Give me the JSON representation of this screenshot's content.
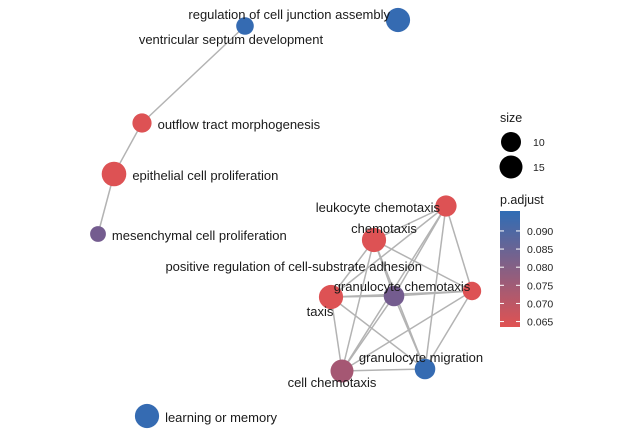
{
  "chart_data": {
    "type": "network",
    "nodes": [
      {
        "id": "regulation_of_cell_junction_assembly",
        "label": "regulation of cell junction assembly",
        "size": 17,
        "p_adjust": 0.094
      },
      {
        "id": "ventricular_septum_development",
        "label": "ventricular septum development",
        "size": 7,
        "p_adjust": 0.094
      },
      {
        "id": "outflow_tract_morphogenesis",
        "label": "outflow tract morphogenesis",
        "size": 9,
        "p_adjust": 0.064
      },
      {
        "id": "epithelial_cell_proliferation",
        "label": "epithelial cell proliferation",
        "size": 18,
        "p_adjust": 0.064
      },
      {
        "id": "mesenchymal_cell_proliferation",
        "label": "mesenchymal cell proliferation",
        "size": 5,
        "p_adjust": 0.079
      },
      {
        "id": "leukocyte_chemotaxis",
        "label": "leukocyte chemotaxis",
        "size": 12,
        "p_adjust": 0.064
      },
      {
        "id": "chemotaxis",
        "label": "chemotaxis",
        "size": 17,
        "p_adjust": 0.064
      },
      {
        "id": "positive_regulation_of_cell_substrate_adhesion",
        "label": "positive regulation of cell-substrate adhesion",
        "size": 8,
        "p_adjust": 0.064
      },
      {
        "id": "granulocyte_chemotaxis",
        "label": "granulocyte chemotaxis",
        "size": 11,
        "p_adjust": 0.079
      },
      {
        "id": "taxis",
        "label": "taxis",
        "size": 17,
        "p_adjust": 0.064
      },
      {
        "id": "granulocyte_migration",
        "label": "granulocyte migration",
        "size": 11,
        "p_adjust": 0.094
      },
      {
        "id": "cell_chemotaxis",
        "label": "cell chemotaxis",
        "size": 15,
        "p_adjust": 0.072
      },
      {
        "id": "learning_or_memory",
        "label": "learning or memory",
        "size": 17,
        "p_adjust": 0.094
      }
    ],
    "edges": [
      [
        "ventricular_septum_development",
        "outflow_tract_morphogenesis"
      ],
      [
        "outflow_tract_morphogenesis",
        "epithelial_cell_proliferation"
      ],
      [
        "epithelial_cell_proliferation",
        "mesenchymal_cell_proliferation"
      ],
      [
        "leukocyte_chemotaxis",
        "chemotaxis"
      ],
      [
        "leukocyte_chemotaxis",
        "granulocyte_chemotaxis"
      ],
      [
        "leukocyte_chemotaxis",
        "taxis"
      ],
      [
        "leukocyte_chemotaxis",
        "granulocyte_migration"
      ],
      [
        "leukocyte_chemotaxis",
        "cell_chemotaxis"
      ],
      [
        "leukocyte_chemotaxis",
        "positive_regulation_of_cell_substrate_adhesion"
      ],
      [
        "chemotaxis",
        "granulocyte_chemotaxis"
      ],
      [
        "chemotaxis",
        "taxis"
      ],
      [
        "chemotaxis",
        "granulocyte_migration"
      ],
      [
        "chemotaxis",
        "cell_chemotaxis"
      ],
      [
        "chemotaxis",
        "positive_regulation_of_cell_substrate_adhesion"
      ],
      [
        "granulocyte_chemotaxis",
        "taxis"
      ],
      [
        "granulocyte_chemotaxis",
        "granulocyte_migration"
      ],
      [
        "granulocyte_chemotaxis",
        "cell_chemotaxis"
      ],
      [
        "granulocyte_chemotaxis",
        "positive_regulation_of_cell_substrate_adhesion"
      ],
      [
        "taxis",
        "granulocyte_migration"
      ],
      [
        "taxis",
        "cell_chemotaxis"
      ],
      [
        "taxis",
        "positive_regulation_of_cell_substrate_adhesion"
      ],
      [
        "granulocyte_migration",
        "cell_chemotaxis"
      ],
      [
        "granulocyte_migration",
        "positive_regulation_of_cell_substrate_adhesion"
      ],
      [
        "cell_chemotaxis",
        "positive_regulation_of_cell_substrate_adhesion"
      ]
    ],
    "legend": {
      "size": {
        "title": "size",
        "values": [
          10,
          15
        ]
      },
      "color": {
        "title": "p.adjust",
        "range": [
          0.0635,
          0.0955
        ],
        "ticks": [
          0.065,
          0.07,
          0.075,
          0.08,
          0.085,
          0.09
        ],
        "tick_labels": [
          "0.065",
          "0.070",
          "0.075",
          "0.080",
          "0.085",
          "0.090"
        ],
        "low_color": "#E05252",
        "high_color": "#2F6DB5"
      },
      "placement": "right"
    },
    "edge_color": "#B3B3B3"
  }
}
